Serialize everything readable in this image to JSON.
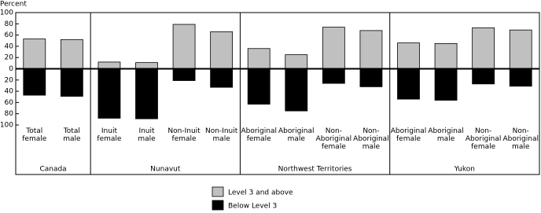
{
  "chart_data": {
    "type": "bar",
    "y_label": "Percent",
    "groups": [
      {
        "name": "Canada",
        "categories": [
          "Total female",
          "Total male"
        ]
      },
      {
        "name": "Nunavut",
        "categories": [
          "Inuit female",
          "Inuit male",
          "Non-Inuit female",
          "Non-Inuit male"
        ]
      },
      {
        "name": "Northwest Territories",
        "categories": [
          "Aboriginal female",
          "Aboriginal male",
          "Non-Aboriginal female",
          "Non-Aboriginal male"
        ]
      },
      {
        "name": "Yukon",
        "categories": [
          "Aboriginal female",
          "Aboriginal male",
          "Non-Aboriginal female",
          "Non-Aboriginal male"
        ]
      }
    ],
    "series": [
      {
        "name": "Level 3 and above",
        "color": "#c0c0c0",
        "values": [
          53,
          52,
          12,
          11,
          79,
          66,
          36,
          25,
          74,
          68,
          46,
          45,
          73,
          69
        ]
      },
      {
        "name": "Below Level 3",
        "color": "#000000",
        "values": [
          -47,
          -49,
          -88,
          -89,
          -21,
          -33,
          -63,
          -75,
          -26,
          -32,
          -54,
          -56,
          -27,
          -31
        ]
      }
    ],
    "ylim": [
      -100,
      100
    ],
    "yticks": [
      100,
      80,
      60,
      40,
      20,
      0,
      {
        "value": -20,
        "label": "20"
      },
      {
        "value": -40,
        "label": "40"
      },
      {
        "value": -60,
        "label": "60"
      },
      {
        "value": -80,
        "label": "80"
      },
      {
        "value": -100,
        "label": "100"
      }
    ],
    "group_label_color": "#007a4d"
  }
}
